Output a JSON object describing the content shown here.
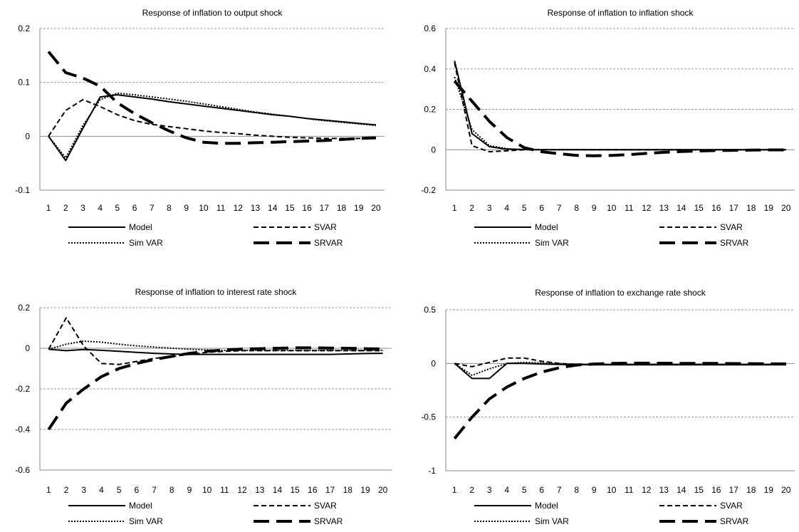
{
  "chart_data": [
    {
      "type": "line",
      "title": "Response of inflation to output shock",
      "x": [
        1,
        2,
        3,
        4,
        5,
        6,
        7,
        8,
        9,
        10,
        11,
        12,
        13,
        14,
        15,
        16,
        17,
        18,
        19,
        20
      ],
      "ylim": [
        -0.1,
        0.2
      ],
      "yticks": [
        0.2,
        0.1,
        0,
        -0.1
      ],
      "ytick_labels": [
        "0.2",
        "0.1",
        "0",
        "-0.1"
      ],
      "grid": true,
      "legend_position": "bottom",
      "series": [
        {
          "name": "Model",
          "values": [
            0,
            -0.045,
            0.015,
            0.073,
            0.077,
            0.073,
            0.069,
            0.064,
            0.06,
            0.056,
            0.052,
            0.048,
            0.044,
            0.04,
            0.037,
            0.033,
            0.03,
            0.027,
            0.024,
            0.021
          ]
        },
        {
          "name": "SVAR",
          "values": [
            0,
            0.048,
            0.068,
            0.055,
            0.04,
            0.029,
            0.022,
            0.018,
            0.014,
            0.01,
            0.007,
            0.005,
            0.002,
            0,
            -0.002,
            -0.003,
            -0.004,
            -0.004,
            -0.004,
            -0.003
          ]
        },
        {
          "name": "Sim VAR",
          "values": [
            0,
            -0.04,
            0.02,
            0.068,
            0.08,
            0.077,
            0.073,
            0.069,
            0.065,
            0.06,
            0.055,
            0.05,
            0.045,
            0.041,
            0.037,
            0.033,
            0.029,
            0.026,
            0.023,
            0.02
          ]
        },
        {
          "name": "SRVAR",
          "values": [
            0.157,
            0.118,
            0.108,
            0.093,
            0.062,
            0.042,
            0.025,
            0.01,
            -0.003,
            -0.011,
            -0.013,
            -0.013,
            -0.012,
            -0.011,
            -0.01,
            -0.009,
            -0.008,
            -0.006,
            -0.004,
            -0.003
          ]
        }
      ]
    },
    {
      "type": "line",
      "title": "Response of inflation to inflation  shock",
      "x": [
        1,
        2,
        3,
        4,
        5,
        6,
        7,
        8,
        9,
        10,
        11,
        12,
        13,
        14,
        15,
        16,
        17,
        18,
        19,
        20
      ],
      "ylim": [
        -0.2,
        0.6
      ],
      "yticks": [
        0.6,
        0.4,
        0.2,
        0,
        -0.2
      ],
      "ytick_labels": [
        "0.6",
        "0.4",
        "0.2",
        "0",
        "-0.2"
      ],
      "grid": true,
      "legend_position": "bottom",
      "series": [
        {
          "name": "Model",
          "values": [
            0.44,
            0.08,
            0.015,
            0.003,
            0.001,
            0,
            0,
            0,
            0,
            0,
            0,
            0,
            0,
            0,
            0,
            0,
            0,
            0,
            0,
            0
          ]
        },
        {
          "name": "SVAR",
          "values": [
            0.43,
            0.02,
            -0.01,
            -0.005,
            0,
            0.001,
            0.001,
            0.001,
            0,
            0,
            0,
            0,
            0,
            0,
            0,
            0,
            0,
            0,
            0,
            0
          ]
        },
        {
          "name": "Sim VAR",
          "values": [
            0.36,
            0.1,
            0.02,
            0.005,
            0.001,
            0,
            0,
            0,
            0,
            0,
            0,
            0,
            0,
            0,
            0,
            0,
            0,
            0,
            0,
            0
          ]
        },
        {
          "name": "SRVAR",
          "values": [
            0.34,
            0.24,
            0.14,
            0.06,
            0.01,
            -0.01,
            -0.02,
            -0.028,
            -0.03,
            -0.028,
            -0.024,
            -0.018,
            -0.013,
            -0.009,
            -0.006,
            -0.004,
            -0.003,
            -0.002,
            -0.001,
            -0.001
          ]
        }
      ]
    },
    {
      "type": "line",
      "title": "Response of inflation to interest rate shock",
      "x": [
        1,
        2,
        3,
        4,
        5,
        6,
        7,
        8,
        9,
        10,
        11,
        12,
        13,
        14,
        15,
        16,
        17,
        18,
        19,
        20
      ],
      "ylim": [
        -0.6,
        0.2
      ],
      "yticks": [
        0.2,
        0,
        -0.2,
        -0.4,
        -0.6
      ],
      "ytick_labels": [
        "0.2",
        "0",
        "-0.2",
        "-0.4",
        "-0.6"
      ],
      "grid": true,
      "legend_position": "bottom",
      "series": [
        {
          "name": "Model",
          "values": [
            -0.005,
            -0.012,
            -0.006,
            -0.01,
            -0.015,
            -0.02,
            -0.025,
            -0.028,
            -0.03,
            -0.03,
            -0.03,
            -0.03,
            -0.03,
            -0.03,
            -0.03,
            -0.03,
            -0.03,
            -0.028,
            -0.026,
            -0.025
          ]
        },
        {
          "name": "SVAR",
          "values": [
            -0.005,
            0.15,
            0.01,
            -0.075,
            -0.08,
            -0.065,
            -0.05,
            -0.04,
            -0.03,
            -0.02,
            -0.015,
            -0.012,
            -0.012,
            -0.012,
            -0.012,
            -0.012,
            -0.012,
            -0.012,
            -0.012,
            -0.012
          ]
        },
        {
          "name": "Sim VAR",
          "values": [
            -0.005,
            0.02,
            0.035,
            0.03,
            0.02,
            0.012,
            0.006,
            0,
            -0.005,
            -0.008,
            -0.01,
            -0.01,
            -0.01,
            -0.01,
            -0.01,
            -0.01,
            -0.01,
            -0.01,
            -0.01,
            -0.01
          ]
        },
        {
          "name": "SRVAR",
          "values": [
            -0.4,
            -0.27,
            -0.2,
            -0.14,
            -0.1,
            -0.075,
            -0.055,
            -0.04,
            -0.025,
            -0.015,
            -0.008,
            -0.004,
            -0.002,
            0,
            0.002,
            0.002,
            0.001,
            0,
            -0.002,
            -0.003
          ]
        }
      ]
    },
    {
      "type": "line",
      "title": "Response of inflation to exchange rate shock",
      "x": [
        1,
        2,
        3,
        4,
        5,
        6,
        7,
        8,
        9,
        10,
        11,
        12,
        13,
        14,
        15,
        16,
        17,
        18,
        19,
        20
      ],
      "ylim": [
        -1,
        0.5
      ],
      "yticks": [
        0.5,
        0,
        -0.5,
        -1
      ],
      "ytick_labels": [
        "0.5",
        "0",
        "-0.5",
        "-1"
      ],
      "grid": true,
      "legend_position": "bottom",
      "series": [
        {
          "name": "Model",
          "values": [
            0,
            -0.14,
            -0.14,
            0,
            0,
            -0.005,
            -0.01,
            -0.012,
            -0.012,
            -0.012,
            -0.012,
            -0.012,
            -0.012,
            -0.012,
            -0.012,
            -0.012,
            -0.012,
            -0.012,
            -0.012,
            -0.012
          ]
        },
        {
          "name": "SVAR",
          "values": [
            0,
            -0.03,
            0.01,
            0.05,
            0.05,
            0.02,
            0,
            -0.01,
            -0.012,
            -0.012,
            -0.012,
            -0.012,
            -0.012,
            -0.012,
            -0.012,
            -0.012,
            -0.012,
            -0.012,
            -0.012,
            -0.012
          ]
        },
        {
          "name": "Sim VAR",
          "values": [
            0,
            -0.11,
            -0.05,
            0,
            0.01,
            0.005,
            0,
            -0.01,
            -0.012,
            -0.012,
            -0.012,
            -0.012,
            -0.012,
            -0.012,
            -0.012,
            -0.012,
            -0.012,
            -0.012,
            -0.012,
            -0.012
          ]
        },
        {
          "name": "SRVAR",
          "values": [
            -0.7,
            -0.5,
            -0.33,
            -0.22,
            -0.14,
            -0.08,
            -0.04,
            -0.015,
            -0.005,
            0,
            0.003,
            0.003,
            0.002,
            0.001,
            0,
            0,
            -0.001,
            -0.002,
            -0.003,
            -0.004
          ]
        }
      ]
    }
  ],
  "legend": [
    {
      "name": "Model",
      "style": "solid"
    },
    {
      "name": "SVAR",
      "style": "dashed"
    },
    {
      "name": "Sim VAR",
      "style": "dotted"
    },
    {
      "name": "SRVAR",
      "style": "long-dash-bold"
    }
  ],
  "colors": {
    "line": "#000000",
    "grid": "#999999",
    "axis": "#888888"
  }
}
